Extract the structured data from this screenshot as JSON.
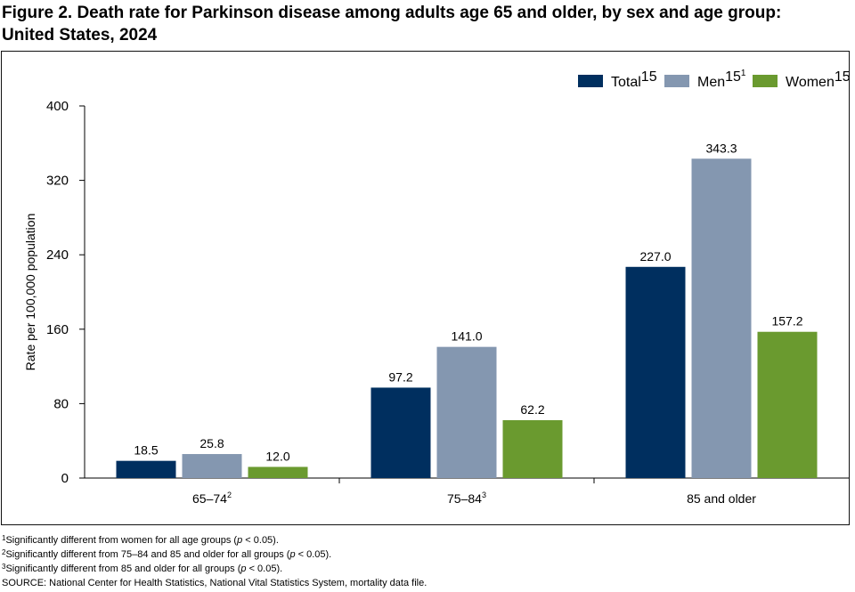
{
  "figure": {
    "title_line1": "Figure 2. Death rate for Parkinson disease among adults age 65 and older, by sex and age group:",
    "title_line2": "United States, 2024"
  },
  "chart_data": {
    "type": "bar",
    "categories": [
      "65–74",
      "75–84",
      "85 and older"
    ],
    "category_superscripts": [
      "2",
      "3",
      ""
    ],
    "series": [
      {
        "name": "Total",
        "superscript": "",
        "color": "#002f5f",
        "values": [
          18.5,
          97.2,
          227.0
        ],
        "labels": [
          "18.5",
          "97.2",
          "227.0"
        ]
      },
      {
        "name": "Men",
        "superscript": "1",
        "color": "#8497b0",
        "values": [
          25.8,
          141.0,
          343.3
        ],
        "labels": [
          "25.8",
          "141.0",
          "343.3"
        ]
      },
      {
        "name": "Women",
        "superscript": "",
        "color": "#6a9a2f",
        "values": [
          12.0,
          62.2,
          157.2
        ],
        "labels": [
          "12.0",
          "62.2",
          "157.2"
        ]
      }
    ],
    "ylabel": "Rate per 100,000 population",
    "xlabel": "",
    "ylim": [
      0,
      400
    ],
    "yticks": [
      0,
      80,
      160,
      240,
      320,
      400
    ],
    "legend_position": "top-right",
    "grid": false
  },
  "footnotes": {
    "note1": {
      "mark": "1",
      "before": "Significantly different from women for all age groups (",
      "p": "p",
      "after": " < 0.05)."
    },
    "note2": {
      "mark": "2",
      "before": "Significantly different from 75–84 and 85 and older for all groups (",
      "p": "p",
      "after": " < 0.05)."
    },
    "note3": {
      "mark": "3",
      "before": "Significantly different from 85 and older for all groups (",
      "p": "p",
      "after": " < 0.05)."
    },
    "source": "SOURCE: National Center for Health Statistics, National Vital Statistics System, mortality data file."
  }
}
